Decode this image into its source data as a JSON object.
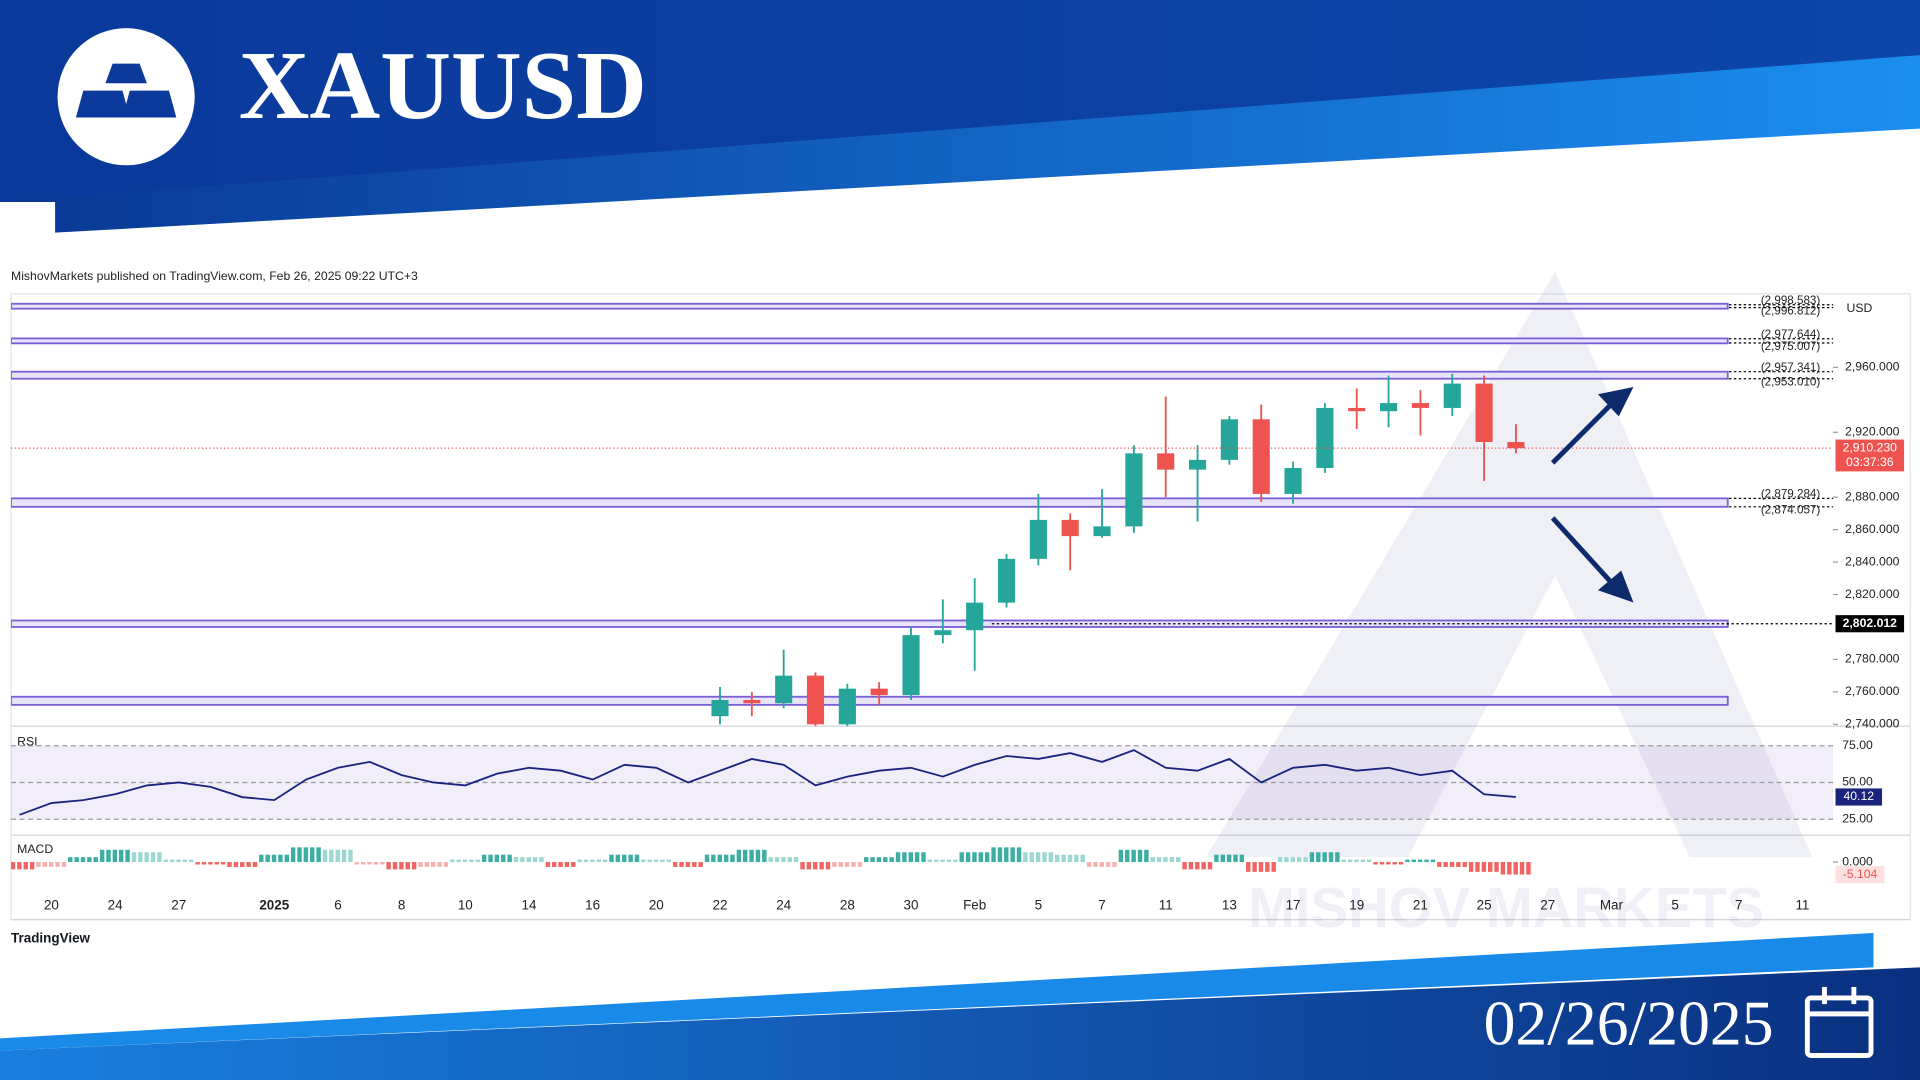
{
  "header": {
    "title": "XAUUSD"
  },
  "publisher": "MishovMarkets published on TradingView.com, Feb 26, 2025 09:22 UTC+3",
  "currency": "USD",
  "branding": "TradingView",
  "watermark": "MISHOV MARKETS",
  "footer": {
    "date": "02/26/2025"
  },
  "chart_data": [
    {
      "type": "candlestick",
      "categories": [
        null,
        "20",
        null,
        "24",
        null,
        "27",
        null,
        null,
        "2025",
        null,
        "6",
        null,
        "8",
        null,
        "10",
        null,
        "14",
        null,
        "16",
        null,
        "20",
        null,
        "22",
        null,
        "24",
        null,
        "28",
        null,
        "30",
        null,
        "Feb",
        null,
        "5",
        null,
        "7",
        null,
        "11",
        null,
        "13",
        null,
        "17",
        null,
        "19",
        null,
        "21",
        null,
        "25",
        null,
        "27",
        null,
        "Mar",
        null,
        "5",
        null,
        "7",
        null,
        "11",
        null
      ],
      "open": [
        null,
        null,
        null,
        null,
        null,
        null,
        null,
        null,
        null,
        null,
        null,
        null,
        null,
        null,
        null,
        null,
        null,
        null,
        null,
        null,
        null,
        null,
        2745,
        2755,
        2753,
        2770,
        2740,
        2762,
        2758,
        2795,
        2798,
        2815,
        2842,
        2866,
        2856,
        2862,
        2907,
        2897,
        2903,
        2928,
        2882,
        2898,
        2935,
        2933,
        2938,
        2935,
        2950,
        2914,
        null,
        null,
        null,
        null,
        null,
        null,
        null,
        null,
        null,
        null
      ],
      "high": [
        null,
        null,
        null,
        null,
        null,
        null,
        null,
        null,
        null,
        null,
        null,
        null,
        null,
        null,
        null,
        null,
        null,
        null,
        null,
        null,
        null,
        null,
        2763,
        2760,
        2786,
        2772,
        2765,
        2766,
        2800,
        2817,
        2830,
        2845,
        2882,
        2870,
        2885,
        2912,
        2942,
        2912,
        2930,
        2937,
        2902,
        2938,
        2947,
        2955,
        2946,
        2956,
        2955,
        2925,
        null,
        null,
        null,
        null,
        null,
        null,
        null,
        null,
        null,
        null
      ],
      "low": [
        null,
        null,
        null,
        null,
        null,
        null,
        null,
        null,
        null,
        null,
        null,
        null,
        null,
        null,
        null,
        null,
        null,
        null,
        null,
        null,
        null,
        null,
        2740,
        2745,
        2750,
        2730,
        2736,
        2752,
        2755,
        2790,
        2773,
        2812,
        2838,
        2835,
        2855,
        2858,
        2880,
        2865,
        2900,
        2877,
        2876,
        2895,
        2922,
        2923,
        2918,
        2930,
        2890,
        2907,
        null,
        null,
        null,
        null,
        null,
        null,
        null,
        null,
        null,
        null
      ],
      "close": [
        null,
        null,
        null,
        null,
        null,
        null,
        null,
        null,
        null,
        null,
        null,
        null,
        null,
        null,
        null,
        null,
        null,
        null,
        null,
        null,
        null,
        null,
        2755,
        2753,
        2770,
        2740,
        2762,
        2758,
        2795,
        2798,
        2815,
        2842,
        2866,
        2856,
        2862,
        2907,
        2897,
        2903,
        2928,
        2882,
        2898,
        2935,
        2933,
        2938,
        2935,
        2950,
        2914,
        2910.23,
        null,
        null,
        null,
        null,
        null,
        null,
        null,
        null,
        null,
        null
      ],
      "last_price_label": "2,910.230",
      "countdown": "03:37:36",
      "up_color": "#26a69a",
      "down_color": "#ef5350",
      "ylim": [
        2738.9,
        3005.3
      ],
      "yticks": [
        {
          "value": 2960,
          "label": "2,960.000"
        },
        {
          "value": 2920,
          "label": "2,920.000"
        },
        {
          "value": 2880,
          "label": "2,880.000"
        },
        {
          "value": 2860,
          "label": "2,860.000"
        },
        {
          "value": 2840,
          "label": "2,840.000"
        },
        {
          "value": 2820,
          "label": "2,820.000"
        },
        {
          "value": 2780,
          "label": "2,780.000"
        },
        {
          "value": 2760,
          "label": "2,760.000"
        },
        {
          "value": 2740,
          "label": "2,740.000"
        }
      ],
      "zones": [
        {
          "low": 2996.812,
          "high": 2998.583,
          "low_label": "(2,996.812)",
          "high_label": "(2,998.583)"
        },
        {
          "low": 2975.007,
          "high": 2977.644,
          "low_label": "(2,975.007)",
          "high_label": "(2,977.644)"
        },
        {
          "low": 2953.01,
          "high": 2957.341,
          "low_label": "(2,953.010)",
          "high_label": "(2,957.341)"
        },
        {
          "low": 2874.057,
          "high": 2879.284,
          "low_label": "(2,874.057)",
          "high_label": "(2,879.284)"
        },
        {
          "low": 2800,
          "high": 2804
        },
        {
          "low": 2752,
          "high": 2757
        }
      ],
      "levels": [
        {
          "value": 2802.012,
          "label": "2,802.012"
        }
      ]
    },
    {
      "type": "line",
      "title": "RSI",
      "color": "#1a237e",
      "values": [
        28,
        36,
        38,
        42,
        48,
        50,
        47,
        40,
        38,
        52,
        60,
        64,
        55,
        50,
        48,
        56,
        60,
        58,
        52,
        62,
        60,
        50,
        58,
        66,
        62,
        48,
        54,
        58,
        60,
        54,
        62,
        68,
        66,
        70,
        64,
        72,
        60,
        58,
        66,
        50,
        60,
        62,
        58,
        60,
        55,
        58,
        42,
        40.12,
        null,
        null,
        null,
        null,
        null,
        null,
        null,
        null,
        null,
        null
      ],
      "ylim": [
        14.2,
        87.5
      ],
      "yticks": [
        {
          "value": 75,
          "label": "75.00"
        },
        {
          "value": 50,
          "label": "50.00"
        },
        {
          "value": 25,
          "label": "25.00"
        }
      ]
    },
    {
      "type": "bar",
      "title": "MACD",
      "pos_color": "#26a69a",
      "neg_color": "#ef5350",
      "values": [
        -3,
        -2,
        2,
        5,
        4,
        1,
        -1,
        -2,
        3,
        6,
        5,
        -1,
        -3,
        -2,
        1,
        3,
        2,
        -2,
        1,
        3,
        1,
        -2,
        3,
        5,
        2,
        -3,
        -2,
        2,
        4,
        1,
        4,
        6,
        4,
        3,
        -2,
        5,
        2,
        -3,
        3,
        -4,
        2,
        4,
        1,
        -1,
        1,
        -2,
        -4,
        -5.104,
        null,
        null,
        null,
        null,
        null,
        null,
        null,
        null,
        null,
        null
      ],
      "ylim": [
        -10,
        10
      ],
      "yticks": [
        {
          "value": 0,
          "label": "0.000"
        }
      ]
    }
  ]
}
